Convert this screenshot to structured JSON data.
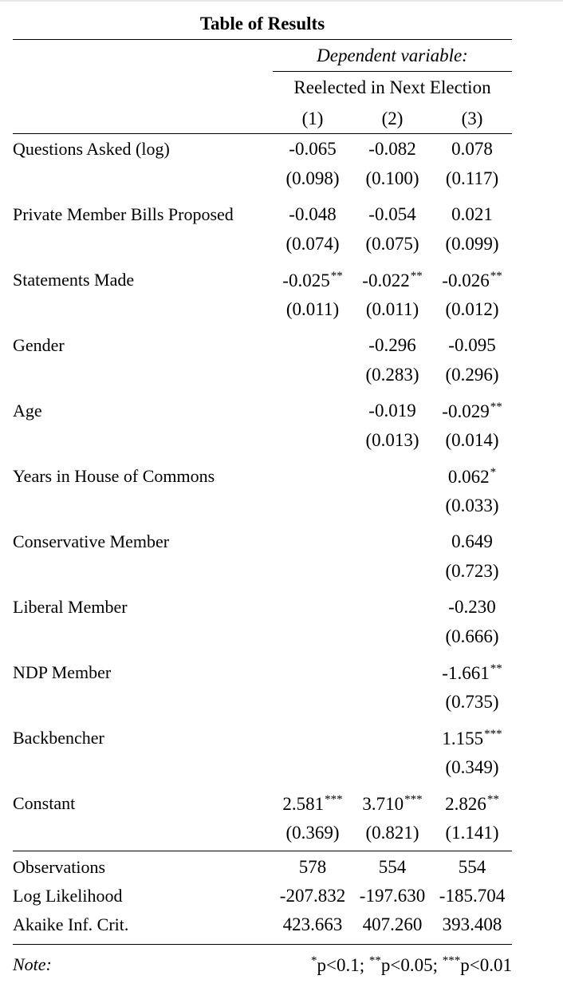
{
  "table": {
    "title": "Table of Results",
    "dependent_variable_label": "Dependent variable:",
    "dependent_variable_name": "Reelected in Next Election",
    "column_numbers": [
      "(1)",
      "(2)",
      "(3)"
    ],
    "rows": [
      {
        "label": "Questions Asked (log)",
        "coefs": [
          "-0.065",
          "-0.082",
          "0.078"
        ],
        "stars": [
          "",
          "",
          ""
        ],
        "ses": [
          "(0.098)",
          "(0.100)",
          "(0.117)"
        ]
      },
      {
        "label": "Private Member Bills Proposed",
        "coefs": [
          "-0.048",
          "-0.054",
          "0.021"
        ],
        "stars": [
          "",
          "",
          ""
        ],
        "ses": [
          "(0.074)",
          "(0.075)",
          "(0.099)"
        ]
      },
      {
        "label": "Statements Made",
        "coefs": [
          "-0.025",
          "-0.022",
          "-0.026"
        ],
        "stars": [
          "**",
          "**",
          "**"
        ],
        "ses": [
          "(0.011)",
          "(0.011)",
          "(0.012)"
        ]
      },
      {
        "label": "Gender",
        "coefs": [
          "",
          "-0.296",
          "-0.095"
        ],
        "stars": [
          "",
          "",
          ""
        ],
        "ses": [
          "",
          "(0.283)",
          "(0.296)"
        ]
      },
      {
        "label": "Age",
        "coefs": [
          "",
          "-0.019",
          "-0.029"
        ],
        "stars": [
          "",
          "",
          "**"
        ],
        "ses": [
          "",
          "(0.013)",
          "(0.014)"
        ]
      },
      {
        "label": "Years in House of Commons",
        "coefs": [
          "",
          "",
          "0.062"
        ],
        "stars": [
          "",
          "",
          "*"
        ],
        "ses": [
          "",
          "",
          "(0.033)"
        ]
      },
      {
        "label": "Conservative Member",
        "coefs": [
          "",
          "",
          "0.649"
        ],
        "stars": [
          "",
          "",
          ""
        ],
        "ses": [
          "",
          "",
          "(0.723)"
        ]
      },
      {
        "label": "Liberal Member",
        "coefs": [
          "",
          "",
          "-0.230"
        ],
        "stars": [
          "",
          "",
          ""
        ],
        "ses": [
          "",
          "",
          "(0.666)"
        ]
      },
      {
        "label": "NDP Member",
        "coefs": [
          "",
          "",
          "-1.661"
        ],
        "stars": [
          "",
          "",
          "**"
        ],
        "ses": [
          "",
          "",
          "(0.735)"
        ]
      },
      {
        "label": "Backbencher",
        "coefs": [
          "",
          "",
          "1.155"
        ],
        "stars": [
          "",
          "",
          "***"
        ],
        "ses": [
          "",
          "",
          "(0.349)"
        ]
      },
      {
        "label": "Constant",
        "coefs": [
          "2.581",
          "3.710",
          "2.826"
        ],
        "stars": [
          "***",
          "***",
          "**"
        ],
        "ses": [
          "(0.369)",
          "(0.821)",
          "(1.141)"
        ]
      }
    ],
    "stats": [
      {
        "label": "Observations",
        "values": [
          "578",
          "554",
          "554"
        ]
      },
      {
        "label": "Log Likelihood",
        "values": [
          "-207.832",
          "-197.630",
          "-185.704"
        ]
      },
      {
        "label": "Akaike Inf. Crit.",
        "values": [
          "423.663",
          "407.260",
          "393.408"
        ]
      }
    ],
    "note_label": "Note:",
    "note": {
      "s1": "*",
      "t1": "p<0.1; ",
      "s2": "**",
      "t2": "p<0.05; ",
      "s3": "***",
      "t3": "p<0.01"
    }
  }
}
